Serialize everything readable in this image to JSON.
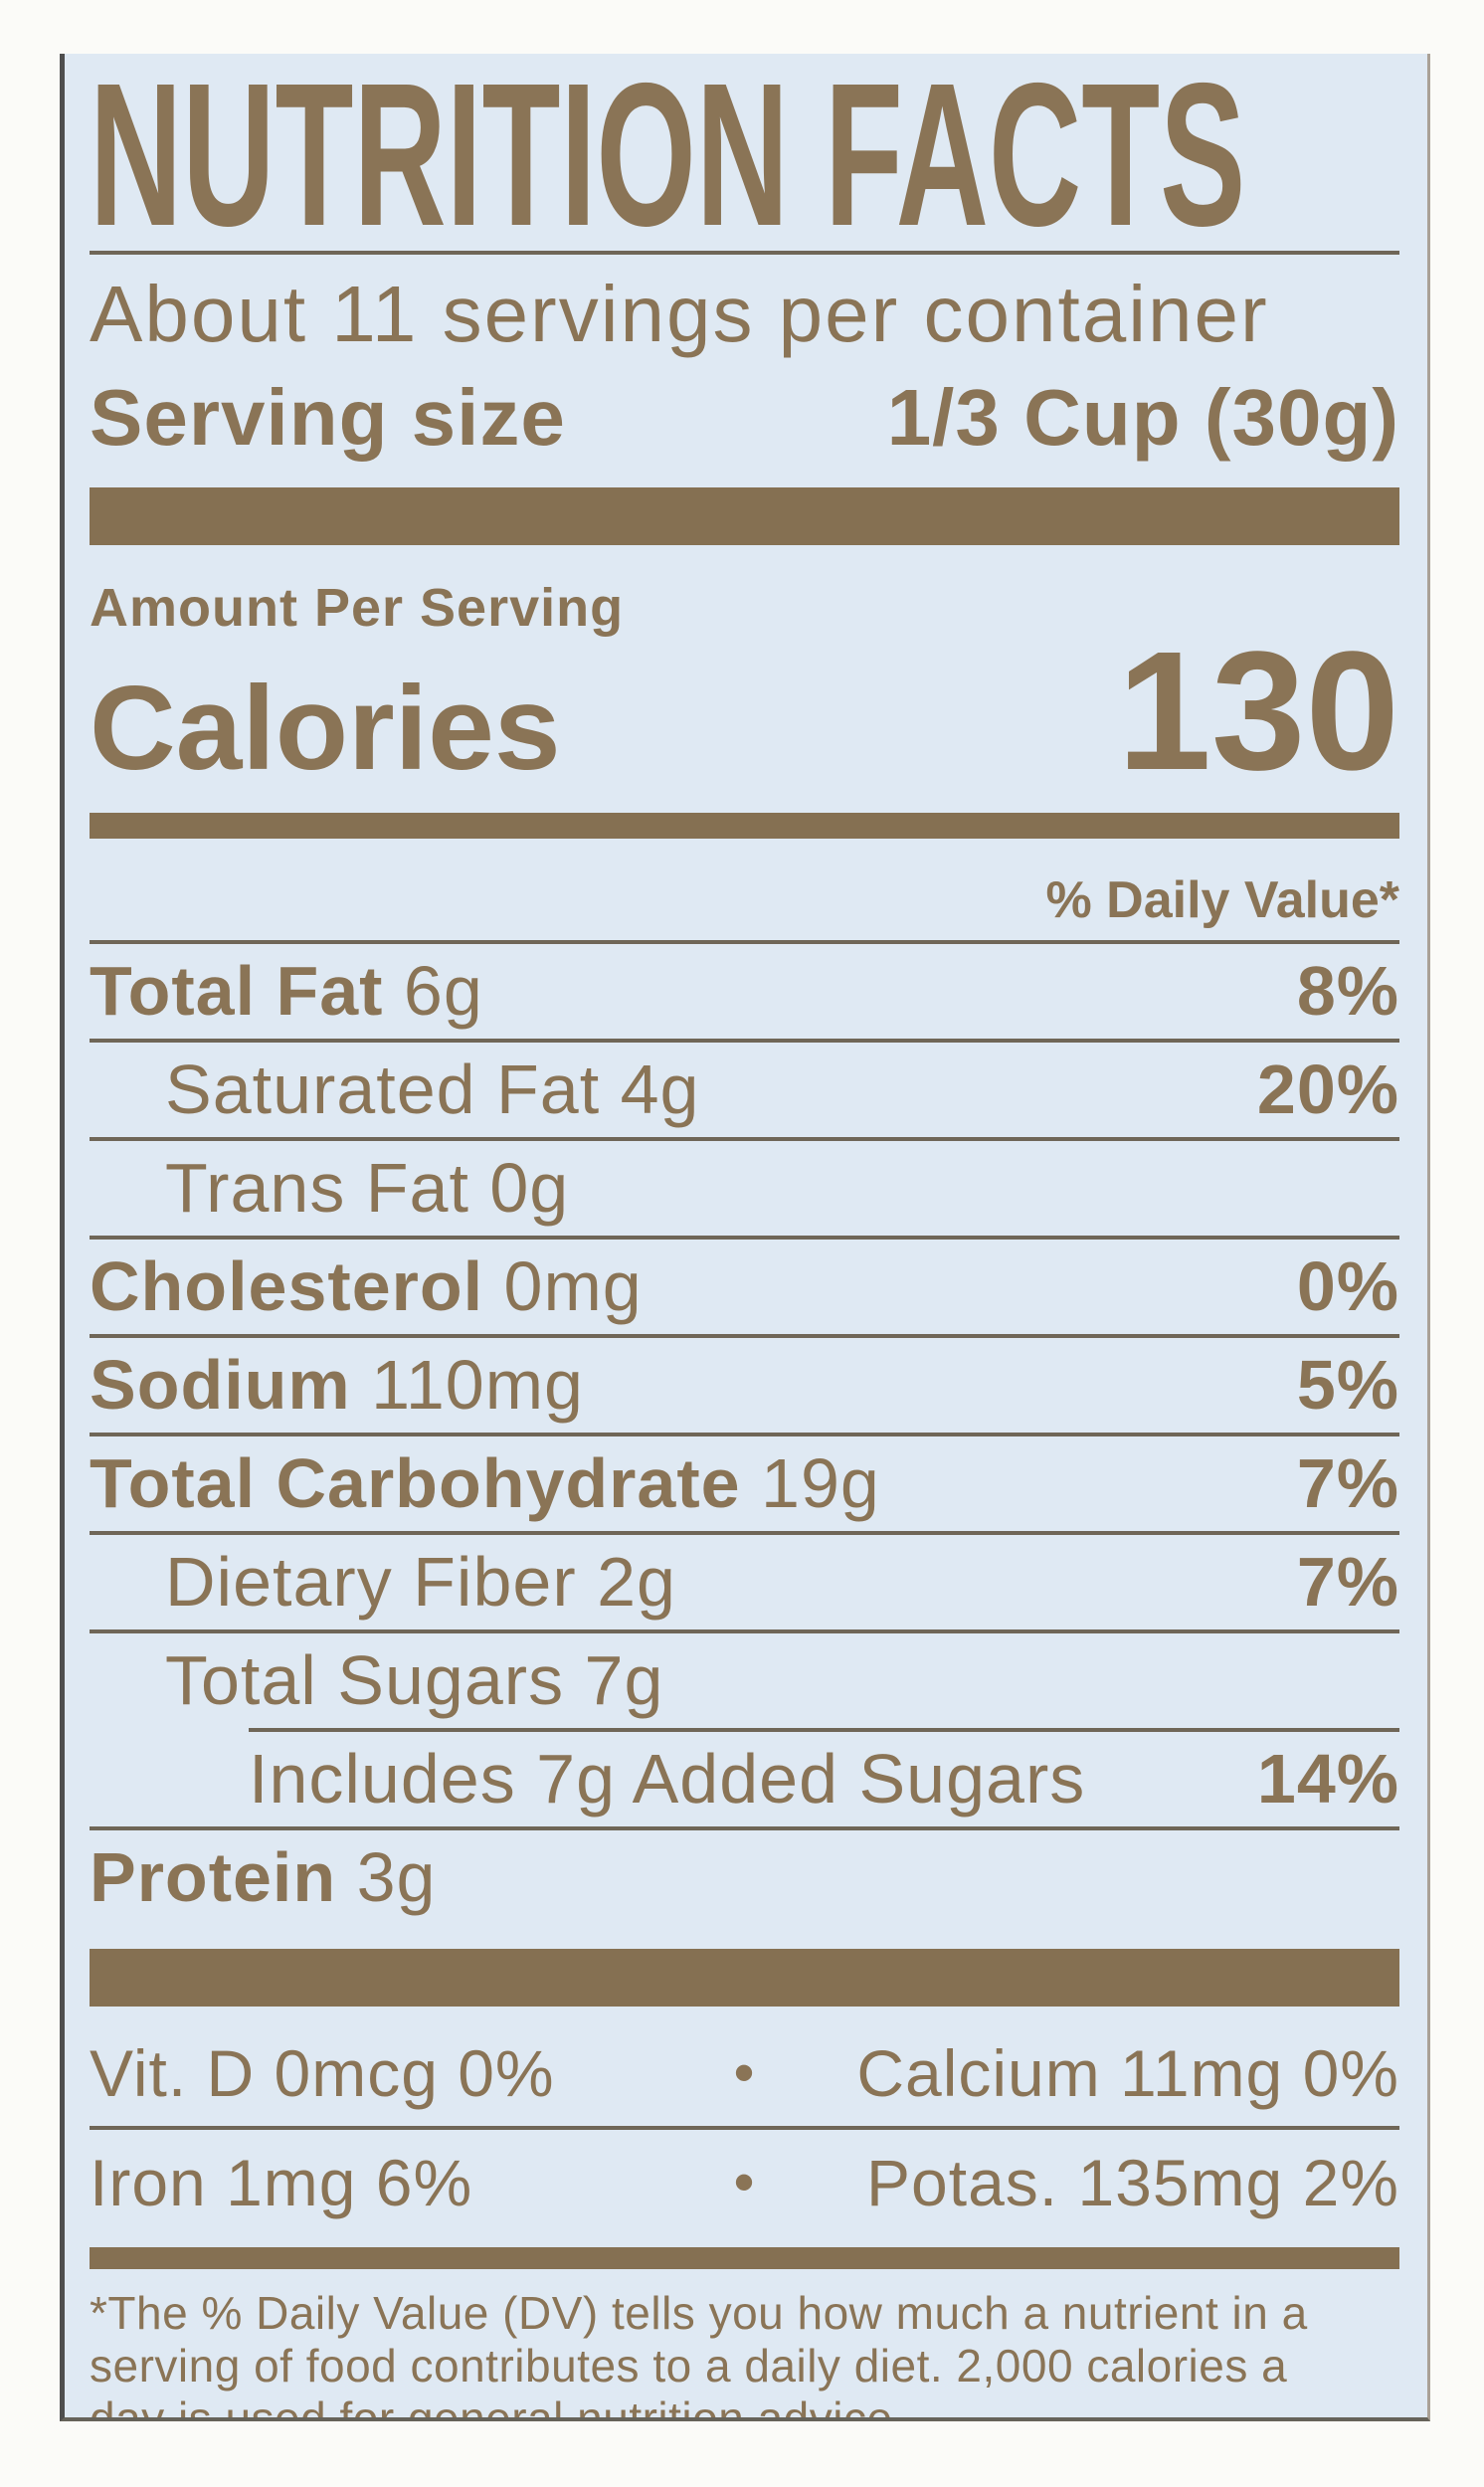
{
  "header": {
    "title": "NUTRITION FACTS",
    "servings_per_container": "About 11 servings per container",
    "serving_size_label": "Serving size",
    "serving_size_value": "1/3 Cup (30g)"
  },
  "calories": {
    "amount_per_serving_label": "Amount Per Serving",
    "label": "Calories",
    "value": "130"
  },
  "daily_value_header": "% Daily Value*",
  "nutrients": [
    {
      "name": "Total Fat",
      "amount": "6g",
      "dv": "8%",
      "indent": 0,
      "bold": true,
      "divider_after": "full"
    },
    {
      "name": "Saturated Fat",
      "amount": "4g",
      "dv": "20%",
      "indent": 1,
      "bold": false,
      "divider_after": "full"
    },
    {
      "name": "Trans Fat",
      "amount": "0g",
      "dv": "",
      "indent": 1,
      "bold": false,
      "divider_after": "full"
    },
    {
      "name": "Cholesterol",
      "amount": "0mg",
      "dv": "0%",
      "indent": 0,
      "bold": true,
      "divider_after": "full"
    },
    {
      "name": "Sodium",
      "amount": "110mg",
      "dv": "5%",
      "indent": 0,
      "bold": true,
      "divider_after": "full"
    },
    {
      "name": "Total Carbohydrate",
      "amount": "19g",
      "dv": "7%",
      "indent": 0,
      "bold": true,
      "divider_after": "full"
    },
    {
      "name": "Dietary Fiber",
      "amount": "2g",
      "dv": "7%",
      "indent": 1,
      "bold": false,
      "divider_after": "full"
    },
    {
      "name": "Total Sugars",
      "amount": "7g",
      "dv": "",
      "indent": 1,
      "bold": false,
      "divider_after": "indent2"
    },
    {
      "name": "Includes 7g Added Sugars",
      "amount": "",
      "dv": "14%",
      "indent": 2,
      "bold": false,
      "divider_after": "full"
    },
    {
      "name": "Protein",
      "amount": "3g",
      "dv": "",
      "indent": 0,
      "bold": true,
      "divider_after": "none"
    }
  ],
  "vitamins": [
    {
      "left": "Vit. D 0mcg 0%",
      "bullet": "•",
      "right": "Calcium 11mg 0%",
      "divider_after": true
    },
    {
      "left": "Iron 1mg 6%",
      "bullet": "•",
      "right": "Potas. 135mg 2%",
      "divider_after": false
    }
  ],
  "footnote_lines": [
    "*The % Daily Value (DV) tells you how much a nutrient in a",
    "serving of food contributes to a daily diet. 2,000 calories a",
    "day is used for general nutrition advice."
  ],
  "colors": {
    "label_background": "#dfe9f3",
    "ink": "#8a7456",
    "bar": "#857052",
    "divider": "#6f6657"
  }
}
